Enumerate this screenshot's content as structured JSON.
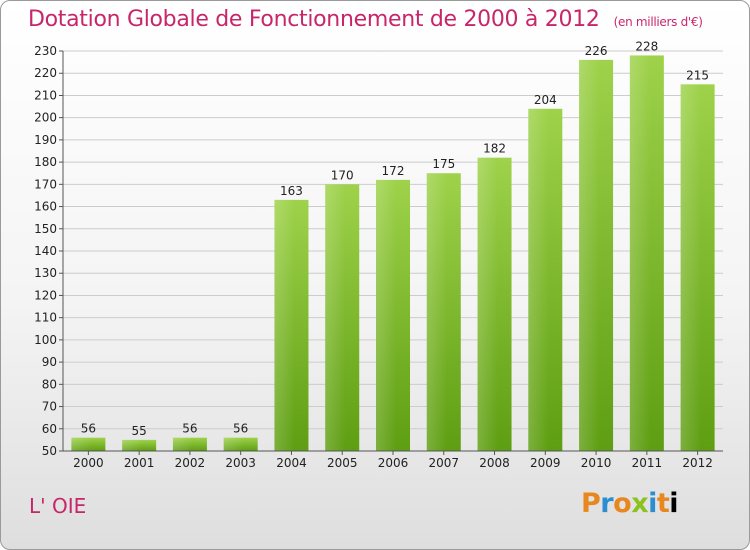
{
  "title": "Dotation Globale de Fonctionnement de 2000 à 2012",
  "subtitle": "(en milliers d'€)",
  "place_name": "L' OIE",
  "logo_text": "Proxiti",
  "colors": {
    "title": "#c8266a",
    "bar_top": "#9ed24a",
    "bar_bottom": "#5e9e12",
    "grid": "#cccccc"
  },
  "chart_data": {
    "type": "bar",
    "categories": [
      "2000",
      "2001",
      "2002",
      "2003",
      "2004",
      "2005",
      "2006",
      "2007",
      "2008",
      "2009",
      "2010",
      "2011",
      "2012"
    ],
    "values": [
      56,
      55,
      56,
      56,
      163,
      170,
      172,
      175,
      182,
      204,
      226,
      228,
      215
    ],
    "ylim": [
      50,
      230
    ],
    "yticks": [
      50,
      60,
      70,
      80,
      90,
      100,
      110,
      120,
      130,
      140,
      150,
      160,
      170,
      180,
      190,
      200,
      210,
      220,
      230
    ],
    "grid": true,
    "legend": "none"
  }
}
